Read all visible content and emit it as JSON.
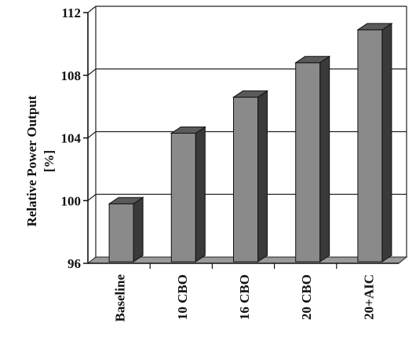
{
  "chart_data": {
    "type": "bar",
    "categories": [
      "Baseline",
      "10 CBO",
      "16 CBO",
      "20 CBO",
      "20+AIC"
    ],
    "values": [
      99.8,
      104.3,
      106.6,
      108.8,
      110.9
    ],
    "ylabel_line1": "Relative Power Output",
    "ylabel_line2": "[%]",
    "ylim": [
      96,
      112
    ],
    "yticks": [
      "96",
      "100",
      "104",
      "108",
      "112"
    ],
    "grid": true,
    "style": "3d-bar",
    "colors": {
      "front": "#8a8a8a",
      "side": "#3a3a3a",
      "top": "#5a5a5a",
      "floor": "#9a9a9a"
    }
  }
}
